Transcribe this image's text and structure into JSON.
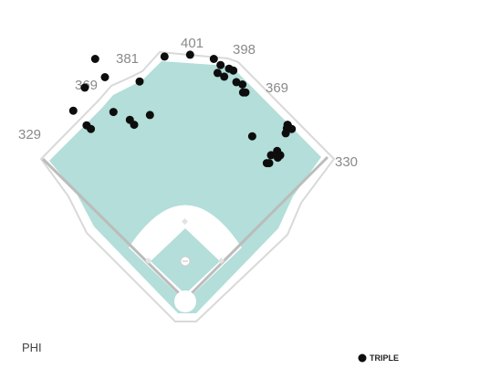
{
  "team": "PHI",
  "colors": {
    "field": "#b3ded9",
    "dirt_infield": "#ffffff",
    "outline": "#d9d9d9",
    "hit": "#0d0d0d"
  },
  "chart_data": {
    "type": "scatter",
    "title": "",
    "xlabel": "",
    "ylabel": "",
    "fence_distances": [
      {
        "id": "lf-line",
        "label": "329"
      },
      {
        "id": "lf",
        "label": "369"
      },
      {
        "id": "lcf",
        "label": "381"
      },
      {
        "id": "cf",
        "label": "401"
      },
      {
        "id": "rcf",
        "label": "398"
      },
      {
        "id": "rf",
        "label": "369"
      },
      {
        "id": "rf-line",
        "label": "330"
      }
    ],
    "series": [
      {
        "name": "TRIPLE",
        "points": [
          {
            "x": -184,
            "y": 310
          },
          {
            "x": -165,
            "y": 348
          },
          {
            "x": -162,
            "y": 286
          },
          {
            "x": -155,
            "y": 280
          },
          {
            "x": -148,
            "y": 395
          },
          {
            "x": -132,
            "y": 365
          },
          {
            "x": -118,
            "y": 308
          },
          {
            "x": -91,
            "y": 295
          },
          {
            "x": -84,
            "y": 287
          },
          {
            "x": -75,
            "y": 358
          },
          {
            "x": -58,
            "y": 303
          },
          {
            "x": -34,
            "y": 399
          },
          {
            "x": 8,
            "y": 402
          },
          {
            "x": 47,
            "y": 395
          },
          {
            "x": 58,
            "y": 385
          },
          {
            "x": 53,
            "y": 372
          },
          {
            "x": 64,
            "y": 366
          },
          {
            "x": 72,
            "y": 379
          },
          {
            "x": 79,
            "y": 376
          },
          {
            "x": 84,
            "y": 357
          },
          {
            "x": 94,
            "y": 353
          },
          {
            "x": 95,
            "y": 340
          },
          {
            "x": 99,
            "y": 340
          },
          {
            "x": 110,
            "y": 268
          },
          {
            "x": 134,
            "y": 224
          },
          {
            "x": 138,
            "y": 224
          },
          {
            "x": 141,
            "y": 237
          },
          {
            "x": 151,
            "y": 244
          },
          {
            "x": 156,
            "y": 237
          },
          {
            "x": 152,
            "y": 233
          },
          {
            "x": 165,
            "y": 273
          },
          {
            "x": 167,
            "y": 281
          },
          {
            "x": 168,
            "y": 283
          },
          {
            "x": 169,
            "y": 285
          },
          {
            "x": 168,
            "y": 287
          },
          {
            "x": 175,
            "y": 280
          }
        ]
      }
    ],
    "legend": {
      "position": "bottom-right",
      "entries": [
        "TRIPLE"
      ]
    }
  }
}
